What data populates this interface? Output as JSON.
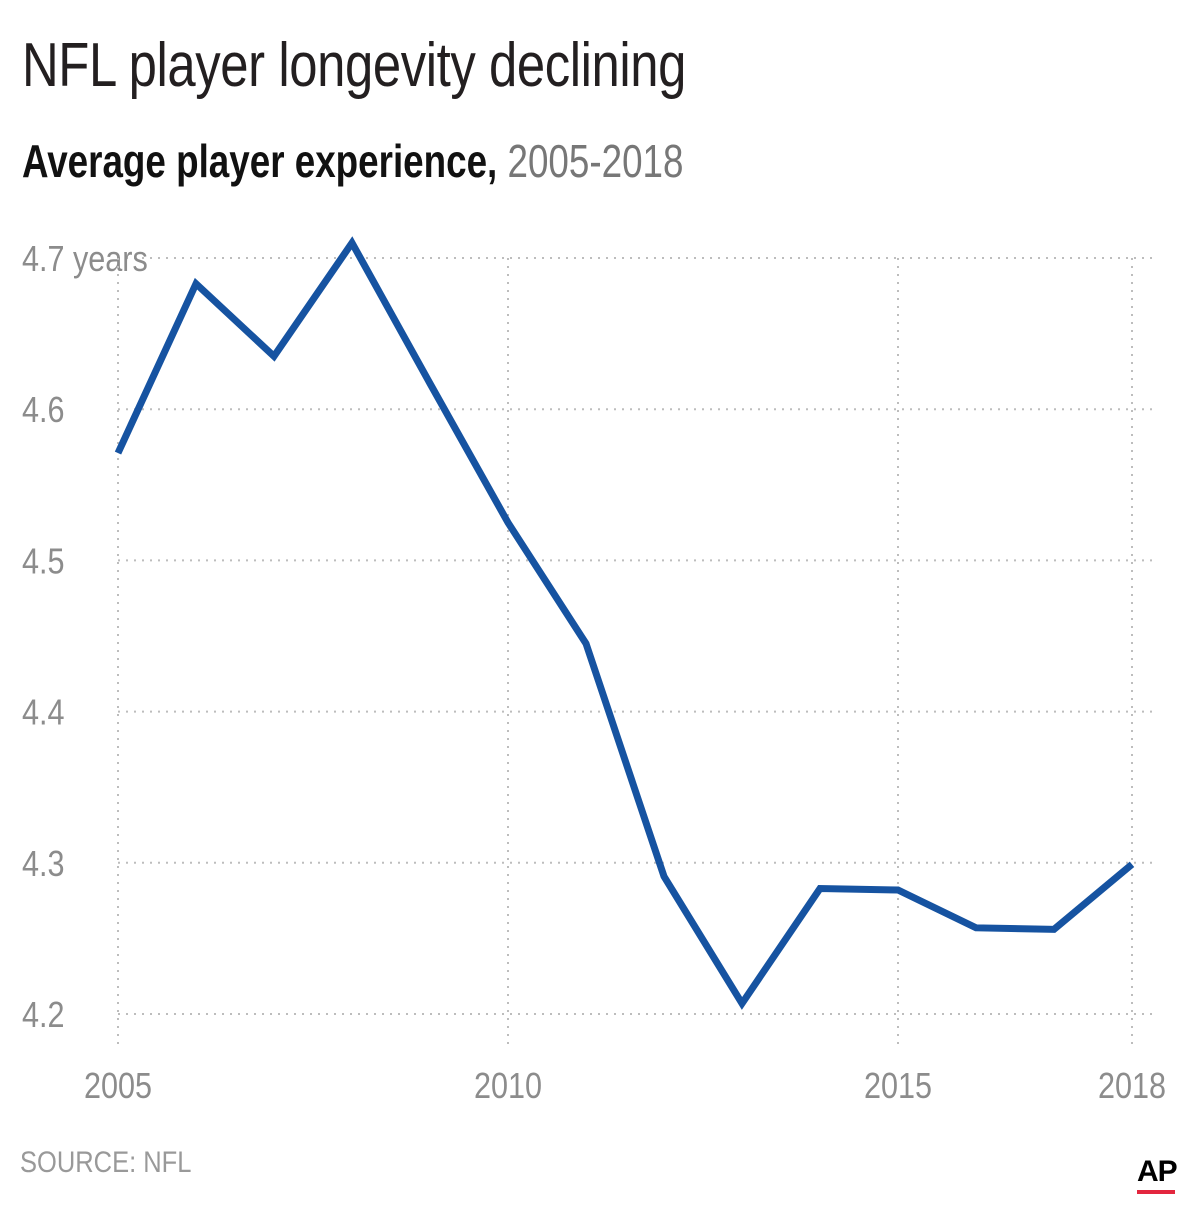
{
  "title": "NFL player longevity declining",
  "subtitle_bold": "Average player experience,",
  "subtitle_range": "2005-2018",
  "source": "SOURCE: NFL",
  "logo": "AP",
  "colors": {
    "line": "#1653a1",
    "grid": "#bdbdbd",
    "tick": "#8c8c8c",
    "logo_accent": "#e3263e"
  },
  "chart_data": {
    "type": "line",
    "title": "NFL player longevity declining",
    "subtitle": "Average player experience, 2005-2018",
    "x": [
      2005,
      2006,
      2007,
      2008,
      2009,
      2010,
      2011,
      2012,
      2013,
      2014,
      2015,
      2016,
      2017,
      2018
    ],
    "series": [
      {
        "values": [
          4.571,
          4.683,
          4.635,
          4.71,
          4.617,
          4.525,
          4.445,
          4.291,
          4.207,
          4.283,
          4.282,
          4.257,
          4.256,
          4.299
        ]
      }
    ],
    "xlim": [
      2005,
      2018
    ],
    "ylim": [
      4.2,
      4.7
    ],
    "x_ticks": [
      2005,
      2010,
      2015,
      2018
    ],
    "x_tick_labels": [
      "2005",
      "2010",
      "2015",
      "2018"
    ],
    "y_ticks": [
      4.2,
      4.3,
      4.4,
      4.5,
      4.6,
      4.7
    ],
    "y_tick_labels": [
      "4.2",
      "4.3",
      "4.4",
      "4.5",
      "4.6",
      "4.7 years"
    ],
    "grid": "dotted",
    "legend": "none"
  }
}
